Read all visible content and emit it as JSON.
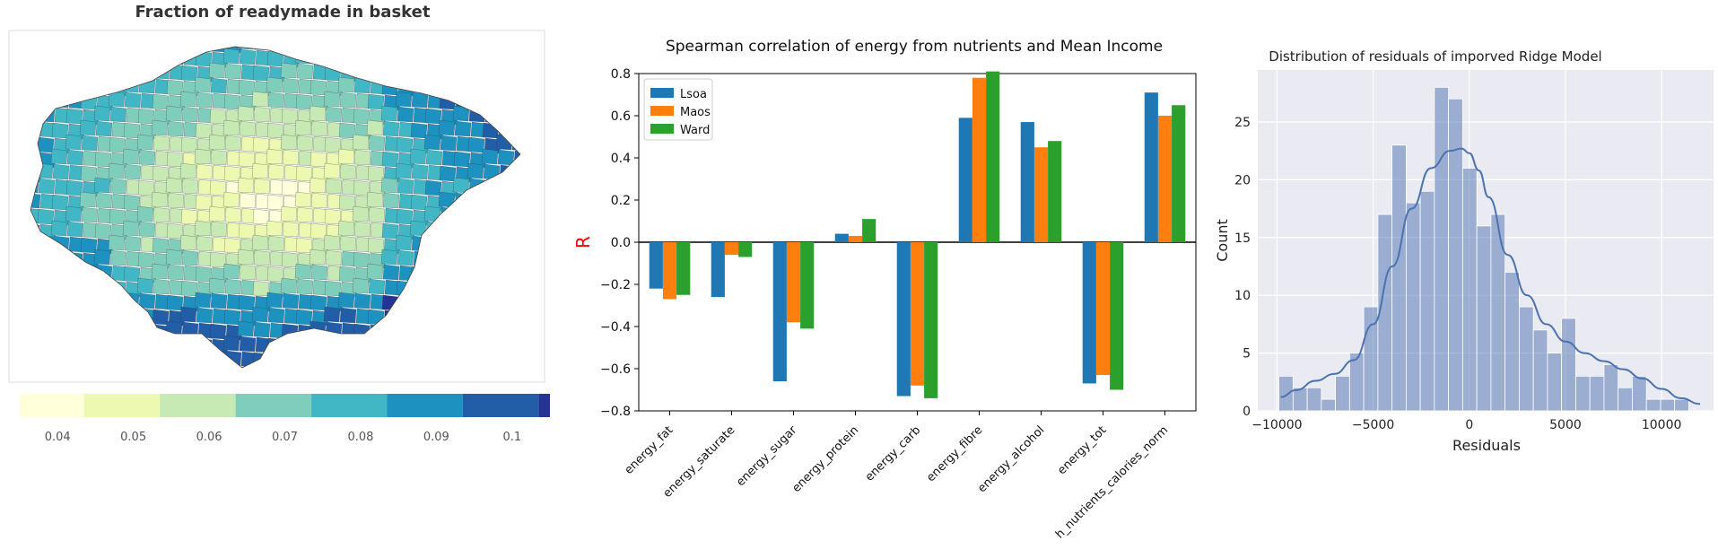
{
  "chart_data": [
    {
      "type": "choropleth",
      "title": "Fraction of readymade in basket",
      "colormap": "YlGnBu",
      "colorbar": {
        "range": [
          0.035,
          0.105
        ],
        "ticks": [
          0.04,
          0.05,
          0.06,
          0.07,
          0.08,
          0.09,
          0.1
        ],
        "tick_labels": [
          "0.04",
          "0.05",
          "0.06",
          "0.07",
          "0.08",
          "0.09",
          "0.1"
        ],
        "bins": [
          0.035,
          0.0435,
          0.0535,
          0.0635,
          0.0735,
          0.0835,
          0.0935,
          0.1035,
          0.105
        ],
        "bin_colors": [
          "#ffffd9",
          "#edf8b1",
          "#c7e9b4",
          "#7fcdbb",
          "#41b6c4",
          "#1d91c0",
          "#225ea8",
          "#253494",
          "#081d58"
        ]
      }
    },
    {
      "type": "bar",
      "title": "Spearman correlation of energy from nutrients and Mean Income",
      "xlabel": "",
      "ylabel": "R",
      "ylabel_color": "#ff0000",
      "ylim": [
        -0.8,
        0.8
      ],
      "yticks": [
        -0.8,
        -0.6,
        -0.4,
        -0.2,
        0.0,
        0.2,
        0.4,
        0.6,
        0.8
      ],
      "ytick_labels": [
        "−0.8",
        "−0.6",
        "−0.4",
        "−0.2",
        "0.0",
        "0.2",
        "0.4",
        "0.6",
        "0.8"
      ],
      "categories": [
        "energy_fat",
        "energy_saturate",
        "energy_sugar",
        "energy_protein",
        "energy_carb",
        "energy_fibre",
        "energy_alcohol",
        "energy_tot",
        "h_nutrients_calories_norm"
      ],
      "legend_position": "top-left",
      "series": [
        {
          "name": "Lsoa",
          "color": "#1f77b4",
          "values": [
            -0.22,
            -0.26,
            -0.66,
            0.04,
            -0.73,
            0.59,
            0.57,
            -0.67,
            0.71
          ]
        },
        {
          "name": "Maos",
          "color": "#ff7f0e",
          "values": [
            -0.27,
            -0.06,
            -0.38,
            0.03,
            -0.68,
            0.78,
            0.45,
            -0.63,
            0.6
          ]
        },
        {
          "name": "Ward",
          "color": "#2ca02c",
          "values": [
            -0.25,
            -0.07,
            -0.41,
            0.11,
            -0.74,
            0.81,
            0.48,
            -0.7,
            0.65
          ]
        }
      ],
      "grid": false
    },
    {
      "type": "histogram",
      "title": "Distribution of residuals of imporved Ridge Model",
      "xlabel": "Residuals",
      "ylabel": "Count",
      "xlim": [
        -11000,
        12700
      ],
      "ylim": [
        0,
        29.5
      ],
      "xticks": [
        -10000,
        -5000,
        0,
        5000,
        10000
      ],
      "xtick_labels": [
        "−10000",
        "−5000",
        "0",
        "5000",
        "10000"
      ],
      "yticks": [
        0,
        5,
        10,
        15,
        20,
        25
      ],
      "ytick_labels": [
        "0",
        "5",
        "10",
        "15",
        "20",
        "25"
      ],
      "bar_color": "#4c72b0",
      "grid": true,
      "kde": true,
      "bins": {
        "start": -9900,
        "width": 735,
        "counts": [
          3,
          2,
          2,
          1,
          3,
          5,
          9,
          17,
          23,
          18,
          19,
          28,
          27,
          21,
          16,
          17,
          12,
          9,
          7,
          5,
          8,
          3,
          3,
          4,
          2,
          3,
          1,
          1,
          1
        ]
      },
      "kde_curve": {
        "x": [
          -9800,
          -9000,
          -8000,
          -7000,
          -6000,
          -5000,
          -4000,
          -3000,
          -2000,
          -1000,
          -400,
          0,
          500,
          1000,
          2000,
          3000,
          4000,
          5000,
          6000,
          7000,
          8000,
          9000,
          10000,
          11000,
          12000
        ],
        "y": [
          1.2,
          1.8,
          2.6,
          3.2,
          4.4,
          7.5,
          12.5,
          17.5,
          21.0,
          22.5,
          22.7,
          22.3,
          20.8,
          18.5,
          13.5,
          10.0,
          7.5,
          6.0,
          5.0,
          4.3,
          3.6,
          2.8,
          1.9,
          1.1,
          0.6
        ]
      }
    }
  ]
}
